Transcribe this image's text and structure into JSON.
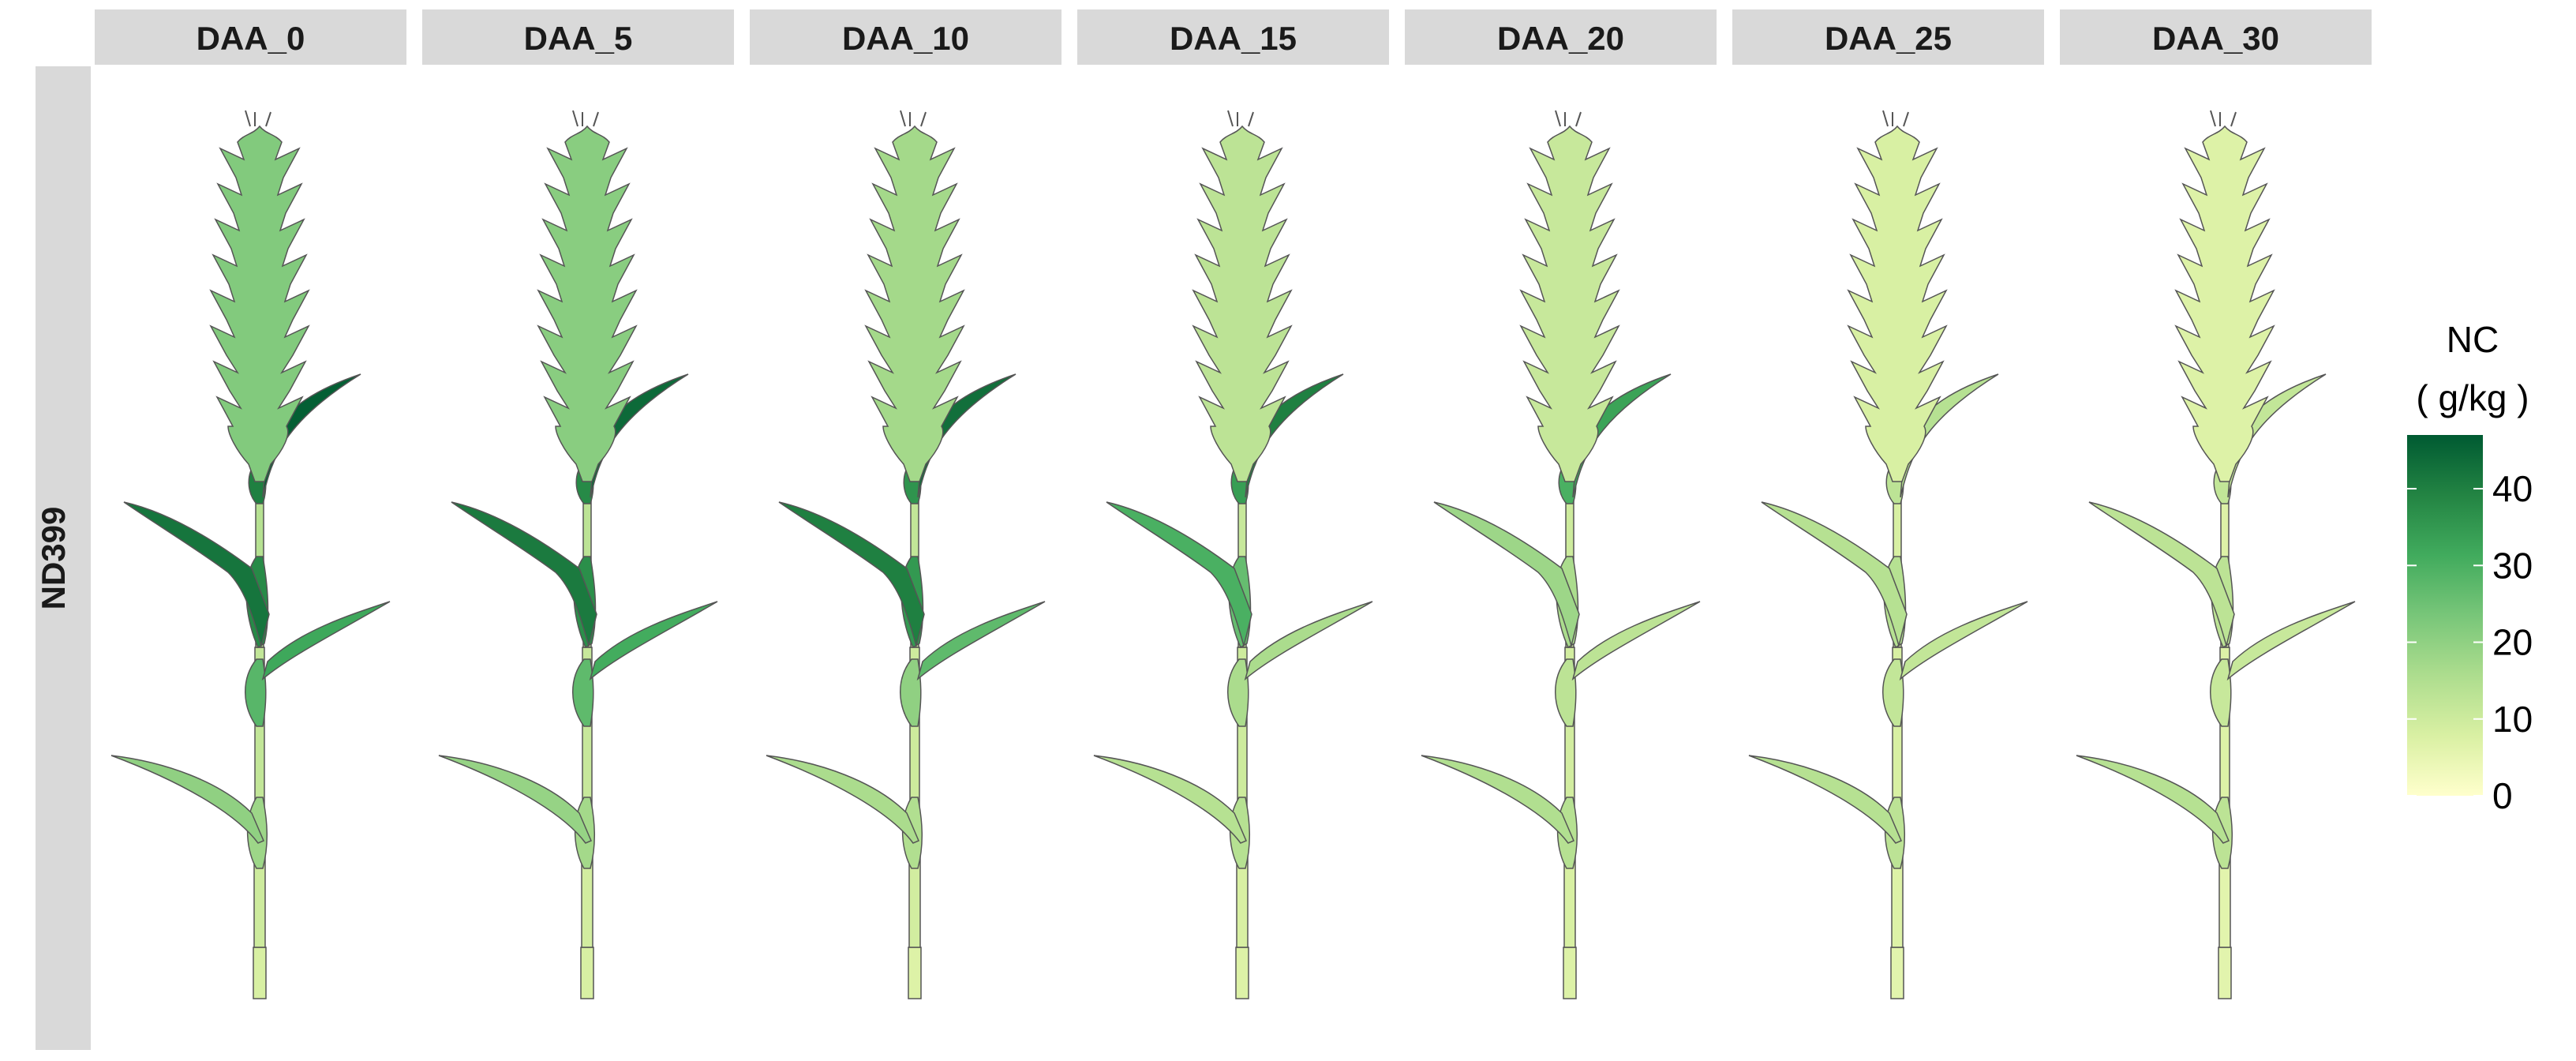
{
  "facet_labels": [
    "DAA_0",
    "DAA_5",
    "DAA_10",
    "DAA_15",
    "DAA_20",
    "DAA_25",
    "DAA_30"
  ],
  "row_label": "ND399",
  "legend": {
    "title": "NC",
    "unit": "( g/kg )",
    "min": 0,
    "max": 47,
    "ticks": [
      0,
      10,
      20,
      30,
      40
    ],
    "tick_labels": [
      "0",
      "10",
      "20",
      "30",
      "40"
    ],
    "gradient_colors": [
      "#ffffcc",
      "#d9f0a3",
      "#addd8e",
      "#78c679",
      "#41ab5d",
      "#238443",
      "#005a32"
    ]
  },
  "colors": {
    "strip_fill": "#d9d9d9",
    "outline": "#555555"
  },
  "chart_data": {
    "type": "heatmap",
    "description_units": "NC (g/kg)",
    "organs": [
      "spike",
      "leaf_flag",
      "leaf_2",
      "leaf_3",
      "leaf_4",
      "sheath_flag",
      "sheath_2",
      "sheath_3",
      "sheath_4",
      "internode_1",
      "internode_2",
      "internode_3",
      "internode_4"
    ],
    "facets": [
      {
        "name": "DAA_0",
        "values": {
          "spike": 22,
          "leaf_flag": 46,
          "leaf_2": 42,
          "leaf_3": 32,
          "leaf_4": 20,
          "sheath_flag": 40,
          "sheath_2": 38,
          "sheath_3": 28,
          "sheath_4": 18,
          "internode_1": 14,
          "internode_2": 12,
          "internode_3": 10,
          "internode_4": 8
        }
      },
      {
        "name": "DAA_5",
        "values": {
          "spike": 21,
          "leaf_flag": 44,
          "leaf_2": 41,
          "leaf_3": 31,
          "leaf_4": 19,
          "sheath_flag": 38,
          "sheath_2": 37,
          "sheath_3": 27,
          "sheath_4": 17,
          "internode_1": 13,
          "internode_2": 11,
          "internode_3": 9,
          "internode_4": 8
        }
      },
      {
        "name": "DAA_10",
        "values": {
          "spike": 17,
          "leaf_flag": 43,
          "leaf_2": 40,
          "leaf_3": 27,
          "leaf_4": 16,
          "sheath_flag": 36,
          "sheath_2": 35,
          "sheath_3": 20,
          "sheath_4": 15,
          "internode_1": 12,
          "internode_2": 10,
          "internode_3": 9,
          "internode_4": 7
        }
      },
      {
        "name": "DAA_15",
        "values": {
          "spike": 13,
          "leaf_flag": 40,
          "leaf_2": 30,
          "leaf_3": 16,
          "leaf_4": 14,
          "sheath_flag": 34,
          "sheath_2": 26,
          "sheath_3": 16,
          "sheath_4": 14,
          "internode_1": 11,
          "internode_2": 10,
          "internode_3": 8,
          "internode_4": 7
        }
      },
      {
        "name": "DAA_20",
        "values": {
          "spike": 11,
          "leaf_flag": 33,
          "leaf_2": 18,
          "leaf_3": 13,
          "leaf_4": 15,
          "sheath_flag": 30,
          "sheath_2": 16,
          "sheath_3": 13,
          "sheath_4": 14,
          "internode_1": 10,
          "internode_2": 9,
          "internode_3": 8,
          "internode_4": 7
        }
      },
      {
        "name": "DAA_25",
        "values": {
          "spike": 8,
          "leaf_flag": 14,
          "leaf_2": 14,
          "leaf_3": 12,
          "leaf_4": 14,
          "sheath_flag": 13,
          "sheath_2": 14,
          "sheath_3": 12,
          "sheath_4": 13,
          "internode_1": 8,
          "internode_2": 8,
          "internode_3": 7,
          "internode_4": 6
        }
      },
      {
        "name": "DAA_30",
        "values": {
          "spike": 7,
          "leaf_flag": 12,
          "leaf_2": 13,
          "leaf_3": 11,
          "leaf_4": 14,
          "sheath_flag": 12,
          "sheath_2": 13,
          "sheath_3": 11,
          "sheath_4": 13,
          "internode_1": 7,
          "internode_2": 7,
          "internode_3": 6,
          "internode_4": 6
        }
      }
    ]
  }
}
